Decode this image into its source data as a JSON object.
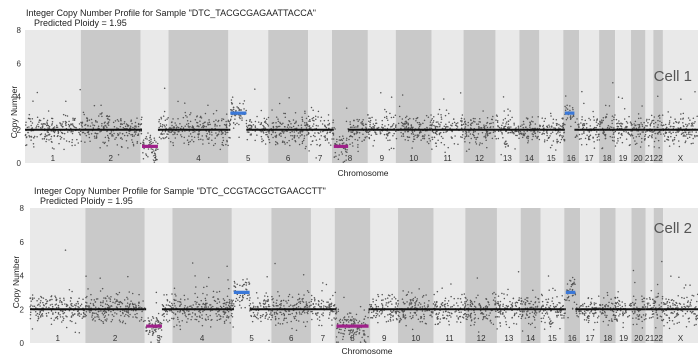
{
  "chart_data": [
    {
      "type": "scatter",
      "name": "Cell 1",
      "title": "Integer Copy Number Profile for Sample \"DTC_TACGCGAGAATTACCA\"",
      "subtitle": "Predicted Ploidy = 1.95",
      "cell_label": "Cell 1",
      "xlabel": "Chromosome",
      "ylabel": "Copy Number",
      "ylim": [
        0,
        8
      ],
      "yticks": [
        "0",
        "2",
        "4",
        "6",
        "8"
      ],
      "grid": false,
      "chromosomes": [
        "1",
        "2",
        "3",
        "4",
        "5",
        "6",
        "7",
        "8",
        "9",
        "10",
        "11",
        "12",
        "13",
        "14",
        "15",
        "16",
        "17",
        "18",
        "19",
        "20",
        "21",
        "22",
        "X"
      ],
      "segments": [
        {
          "chromosome": "1",
          "copy_number": 2
        },
        {
          "chromosome": "2",
          "copy_number": 2
        },
        {
          "chromosome": "3",
          "copy_number": 1,
          "note": "p-arm loss"
        },
        {
          "chromosome": "4",
          "copy_number": 2
        },
        {
          "chromosome": "5",
          "copy_number": 3,
          "note": "p-arm gain"
        },
        {
          "chromosome": "6",
          "copy_number": 2
        },
        {
          "chromosome": "7",
          "copy_number": 2
        },
        {
          "chromosome": "8",
          "copy_number": 1,
          "note": "p-arm loss"
        },
        {
          "chromosome": "9",
          "copy_number": 2
        },
        {
          "chromosome": "10",
          "copy_number": 2
        },
        {
          "chromosome": "11",
          "copy_number": 2
        },
        {
          "chromosome": "12",
          "copy_number": 2
        },
        {
          "chromosome": "13",
          "copy_number": 2
        },
        {
          "chromosome": "14",
          "copy_number": 2
        },
        {
          "chromosome": "15",
          "copy_number": 2
        },
        {
          "chromosome": "16",
          "copy_number": 3,
          "note": "focal gain"
        },
        {
          "chromosome": "17",
          "copy_number": 2
        },
        {
          "chromosome": "18",
          "copy_number": 2
        },
        {
          "chromosome": "19",
          "copy_number": 2
        },
        {
          "chromosome": "20",
          "copy_number": 2
        },
        {
          "chromosome": "21",
          "copy_number": 2
        },
        {
          "chromosome": "22",
          "copy_number": 2
        },
        {
          "chromosome": "X",
          "copy_number": 2
        }
      ]
    },
    {
      "type": "scatter",
      "name": "Cell 2",
      "title": "Integer Copy Number Profile for Sample \"DTC_CCGTACGCTGAACCTT\"",
      "subtitle": "Predicted Ploidy = 1.95",
      "cell_label": "Cell 2",
      "xlabel": "Chromosome",
      "ylabel": "Copy Number",
      "ylim": [
        0,
        8
      ],
      "yticks": [
        "0",
        "2",
        "4",
        "6",
        "8"
      ],
      "grid": false,
      "chromosomes": [
        "1",
        "2",
        "3",
        "4",
        "5",
        "6",
        "7",
        "8",
        "9",
        "10",
        "11",
        "12",
        "13",
        "14",
        "15",
        "16",
        "17",
        "18",
        "19",
        "20",
        "21",
        "22",
        "X"
      ],
      "segments": [
        {
          "chromosome": "1",
          "copy_number": 2
        },
        {
          "chromosome": "2",
          "copy_number": 2
        },
        {
          "chromosome": "3",
          "copy_number": 1,
          "note": "p-arm loss"
        },
        {
          "chromosome": "4",
          "copy_number": 2
        },
        {
          "chromosome": "5",
          "copy_number": 3,
          "note": "p-arm gain"
        },
        {
          "chromosome": "6",
          "copy_number": 2
        },
        {
          "chromosome": "7",
          "copy_number": 2
        },
        {
          "chromosome": "8",
          "copy_number": 1,
          "note": "whole-chromosome loss"
        },
        {
          "chromosome": "9",
          "copy_number": 2
        },
        {
          "chromosome": "10",
          "copy_number": 2
        },
        {
          "chromosome": "11",
          "copy_number": 2
        },
        {
          "chromosome": "12",
          "copy_number": 2
        },
        {
          "chromosome": "13",
          "copy_number": 2
        },
        {
          "chromosome": "14",
          "copy_number": 2
        },
        {
          "chromosome": "15",
          "copy_number": 2
        },
        {
          "chromosome": "16",
          "copy_number": 3,
          "note": "focal gain"
        },
        {
          "chromosome": "17",
          "copy_number": 2
        },
        {
          "chromosome": "18",
          "copy_number": 2
        },
        {
          "chromosome": "19",
          "copy_number": 2
        },
        {
          "chromosome": "20",
          "copy_number": 2
        },
        {
          "chromosome": "21",
          "copy_number": 2
        },
        {
          "chromosome": "22",
          "copy_number": 2
        },
        {
          "chromosome": "X",
          "copy_number": 2
        }
      ]
    }
  ],
  "colors": {
    "band_light": "#e9e9e9",
    "band_dark": "#c9c9c9",
    "points": "#555555",
    "neutral_segment": "#111111",
    "gain_segment": "#3a78d8",
    "loss_segment": "#a0208a"
  }
}
